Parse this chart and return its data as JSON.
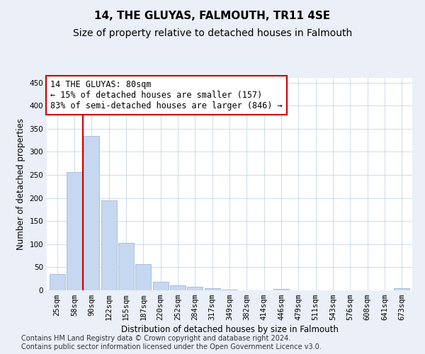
{
  "title": "14, THE GLUYAS, FALMOUTH, TR11 4SE",
  "subtitle": "Size of property relative to detached houses in Falmouth",
  "xlabel": "Distribution of detached houses by size in Falmouth",
  "ylabel": "Number of detached properties",
  "categories": [
    "25sqm",
    "58sqm",
    "90sqm",
    "122sqm",
    "155sqm",
    "187sqm",
    "220sqm",
    "252sqm",
    "284sqm",
    "317sqm",
    "349sqm",
    "382sqm",
    "414sqm",
    "446sqm",
    "479sqm",
    "511sqm",
    "543sqm",
    "576sqm",
    "608sqm",
    "641sqm",
    "673sqm"
  ],
  "values": [
    36,
    256,
    335,
    195,
    103,
    57,
    18,
    10,
    7,
    4,
    1,
    0,
    0,
    3,
    0,
    0,
    0,
    0,
    0,
    0,
    4
  ],
  "bar_color": "#c5d8f0",
  "bar_edge_color": "#a0b8d8",
  "vline_color": "#cc0000",
  "annotation_text": "14 THE GLUYAS: 80sqm\n← 15% of detached houses are smaller (157)\n83% of semi-detached houses are larger (846) →",
  "annotation_box_color": "#ffffff",
  "annotation_box_edge_color": "#cc0000",
  "ylim": [
    0,
    460
  ],
  "yticks": [
    0,
    50,
    100,
    150,
    200,
    250,
    300,
    350,
    400,
    450
  ],
  "footer_text": "Contains HM Land Registry data © Crown copyright and database right 2024.\nContains public sector information licensed under the Open Government Licence v3.0.",
  "bg_color": "#eaeff8",
  "plot_bg_color": "#ffffff",
  "grid_color": "#c8d4e8",
  "title_fontsize": 11,
  "subtitle_fontsize": 10,
  "axis_label_fontsize": 8.5,
  "tick_fontsize": 7.5,
  "annotation_fontsize": 8.5,
  "footer_fontsize": 7
}
